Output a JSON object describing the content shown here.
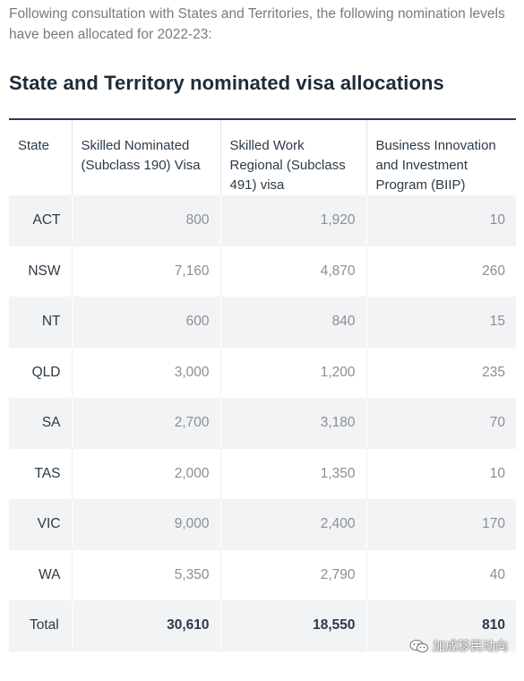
{
  "intro": "Following consultation with States and Territories, the following nomination levels have been allocated for 2022-23:",
  "heading": "State and Territory nominated visa allocations",
  "table": {
    "headers": [
      "State",
      "Skilled Nominated (Subclass 190) Visa",
      "Skilled Work Regional (Subclass 491) visa",
      "Business Innovation and Investment Program (BIIP)"
    ],
    "rows": [
      [
        "ACT",
        "800",
        "1,920",
        "10"
      ],
      [
        "NSW",
        "7,160",
        "4,870",
        "260"
      ],
      [
        "NT",
        "600",
        "840",
        "15"
      ],
      [
        "QLD",
        "3,000",
        "1,200",
        "235"
      ],
      [
        "SA",
        "2,700",
        "3,180",
        "70"
      ],
      [
        "TAS",
        "2,000",
        "1,350",
        "10"
      ],
      [
        "VIC",
        "9,000",
        "2,400",
        "170"
      ],
      [
        "WA",
        "5,350",
        "2,790",
        "40"
      ]
    ],
    "total": [
      "Total",
      "30,610",
      "18,550",
      "810"
    ]
  },
  "watermark": {
    "text": "加成移民动向",
    "icon": "wechat-icon"
  }
}
